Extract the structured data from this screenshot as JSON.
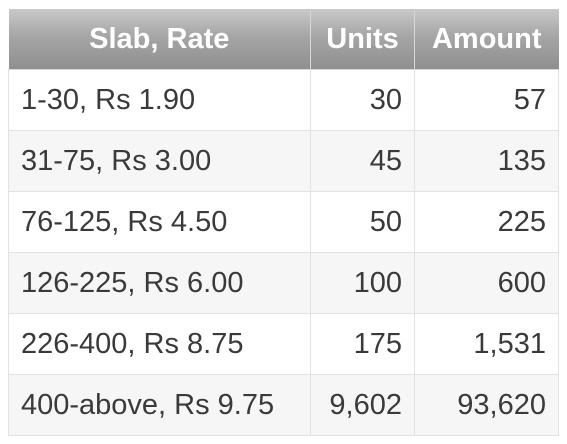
{
  "table": {
    "headers": {
      "slab": "Slab, Rate",
      "units": "Units",
      "amount": "Amount"
    },
    "rows": [
      {
        "slab": "1-30, Rs 1.90",
        "units": "30",
        "amount": "57"
      },
      {
        "slab": "31-75, Rs 3.00",
        "units": "45",
        "amount": "135"
      },
      {
        "slab": "76-125, Rs 4.50",
        "units": "50",
        "amount": "225"
      },
      {
        "slab": "126-225, Rs 6.00",
        "units": "100",
        "amount": "600"
      },
      {
        "slab": "226-400, Rs 8.75",
        "units": "175",
        "amount": "1,531"
      },
      {
        "slab": "400-above, Rs 9.75",
        "units": "9,602",
        "amount": "93,620"
      }
    ]
  },
  "colors": {
    "header_text": "#ffffff",
    "header_bg": "#a6a6a6",
    "cell_text": "#3a3a3a",
    "border": "#e2e2e2"
  }
}
